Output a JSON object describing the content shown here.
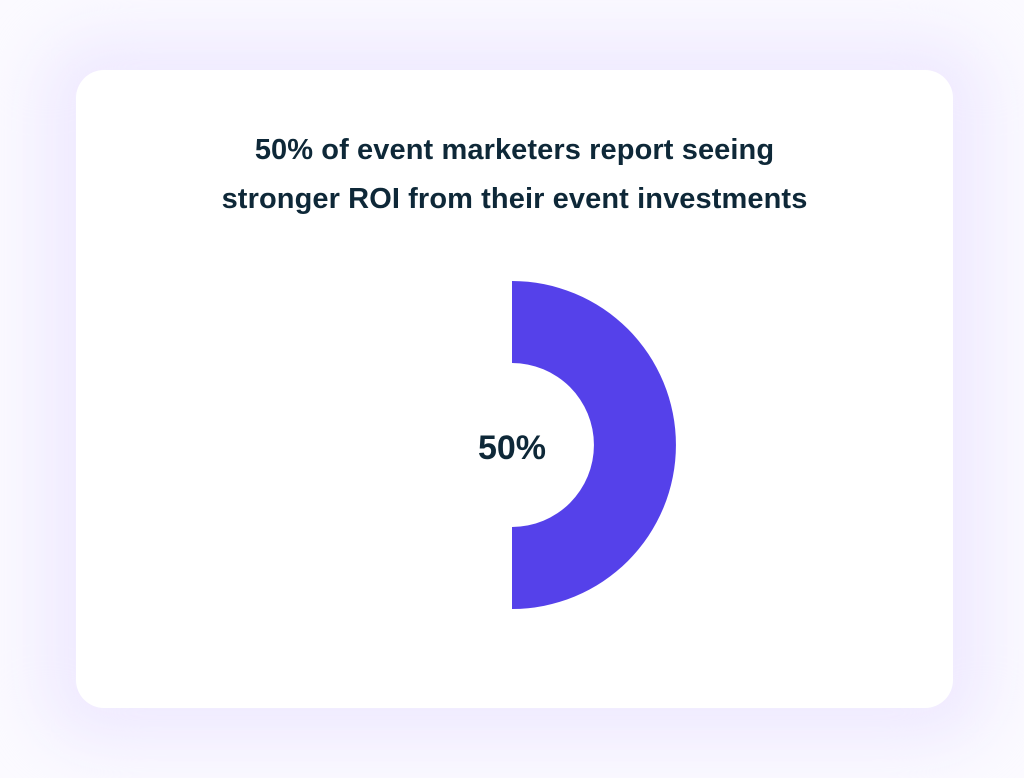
{
  "chart_data": {
    "type": "pie",
    "variant": "donut",
    "title_lines": [
      "50% of event marketers report seeing",
      "stronger ROI from their event investments"
    ],
    "slices": [
      {
        "value": 50,
        "color": "#5541ea"
      },
      {
        "value": 50,
        "color": "#ffffff"
      }
    ],
    "center_label": "50%"
  },
  "colors": {
    "accent": "#5541ea",
    "text": "#0e2838"
  }
}
